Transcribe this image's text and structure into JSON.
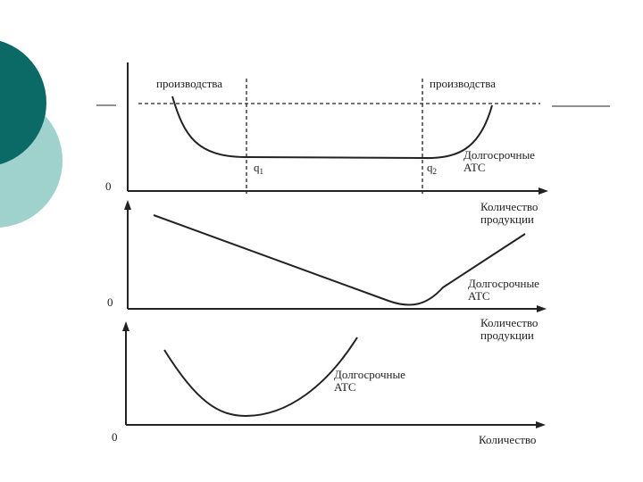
{
  "colors": {
    "deco_dark": "#0b6a66",
    "deco_light": "#9fd2cc",
    "ink": "#222222"
  },
  "panel1": {
    "left_label": "производства",
    "right_label": "производства",
    "q1_base": "q",
    "q1_sub": "1",
    "q2_base": "q",
    "q2_sub": "2",
    "curve_label": [
      "Долгосрочные",
      "ATC"
    ],
    "x_label": [
      "Количество",
      "продукции"
    ],
    "origin": "0"
  },
  "panel2": {
    "curve_label": [
      "Долгосрочные",
      "ATC"
    ],
    "x_label": [
      "Количество",
      "продукции"
    ],
    "origin": "0"
  },
  "panel3": {
    "curve_label": [
      "Долгосрочные",
      "ATC"
    ],
    "x_label": "Количество",
    "origin": "0"
  }
}
